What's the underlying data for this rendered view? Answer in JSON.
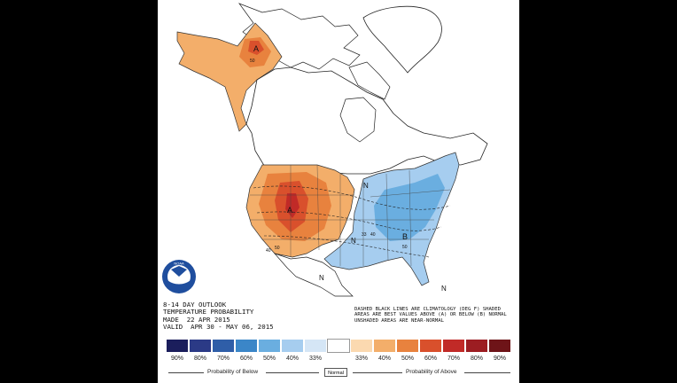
{
  "product": {
    "title_lines": [
      "8-14 DAY OUTLOOK",
      "TEMPERATURE PROBABILITY",
      "MADE  22 APR 2015",
      "VALID  APR 30 - MAY 06, 2015"
    ],
    "notes": "DASHED BLACK LINES ARE CLIMATOLOGY (DEG F) SHADED AREAS ARE BEST VALUES ABOVE (A) OR BELOW (B) NORMAL UNSHADED AREAS ARE NEAR-NORMAL",
    "logo_text": "NOAA"
  },
  "map_labels": {
    "above_alaska": "A",
    "above_west": "A",
    "below_east": "B",
    "normal_1": "N",
    "normal_2": "N",
    "normal_3": "N",
    "normal_4": "N",
    "contour_50_alaska": "50",
    "contour_40_west": "40",
    "contour_50_west": "50",
    "contour_33_east": "33",
    "contour_40_east": "40",
    "contour_50_east": "50"
  },
  "legend": {
    "below_caption": "Probability of Below",
    "normal_caption": "Normal",
    "above_caption": "Probability of Above",
    "categories": [
      "90%",
      "80%",
      "70%",
      "60%",
      "50%",
      "40%",
      "33%",
      "",
      "33%",
      "40%",
      "50%",
      "60%",
      "70%",
      "80%",
      "90%"
    ],
    "colors": [
      "#1b1e5c",
      "#2b3a86",
      "#2f5ea8",
      "#3b86c8",
      "#6aaee0",
      "#a6cdef",
      "#d5e6f6",
      "#ffffff",
      "#fbd9b0",
      "#f3ae6a",
      "#e8823e",
      "#d9502c",
      "#c12a27",
      "#9c1d22",
      "#6e1418"
    ]
  },
  "colors": {
    "above_light": "#f3ae6a",
    "above_mid": "#e8823e",
    "above_dark": "#d9502c",
    "below_light": "#a6cdef",
    "below_mid": "#6aaee0"
  }
}
